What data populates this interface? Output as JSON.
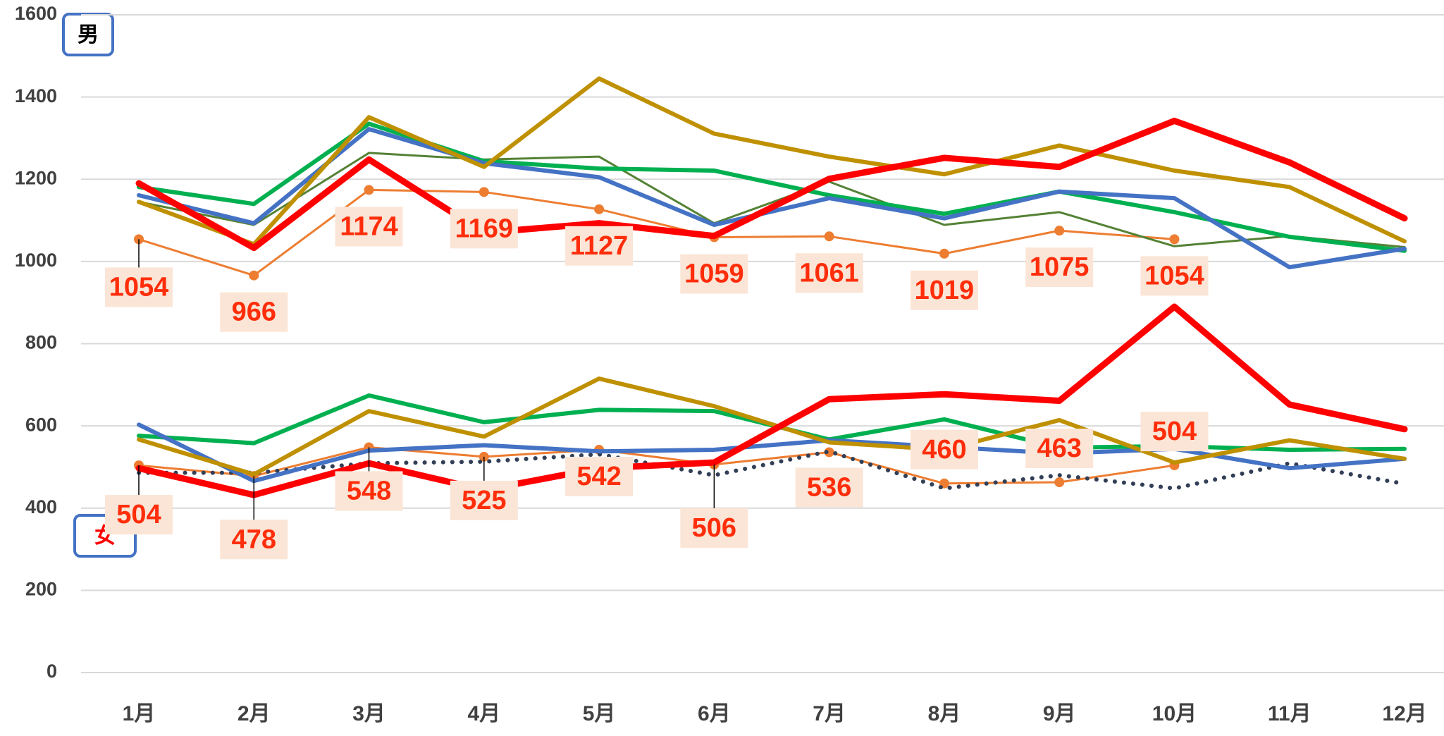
{
  "chart_data": {
    "type": "line",
    "annotations": [
      "男",
      "女"
    ],
    "categories": [
      "1月",
      "2月",
      "3月",
      "4月",
      "5月",
      "6月",
      "7月",
      "8月",
      "9月",
      "10月",
      "11月",
      "12月"
    ],
    "ylim": [
      0,
      1600
    ],
    "yticks": [
      0,
      200,
      400,
      600,
      800,
      1000,
      1200,
      1400,
      1600
    ],
    "grid": true,
    "series": [
      {
        "color": "#ed7d31",
        "markers": true,
        "data_labels": true,
        "values": [
          1054,
          966,
          1174,
          1169,
          1127,
          1059,
          1061,
          1019,
          1075,
          1054,
          null,
          null
        ]
      },
      {
        "color": "#548235",
        "values": [
          1145,
          1089,
          1264,
          1248,
          1255,
          1093,
          1194,
          1089,
          1120,
          1037,
          1062,
          1035
        ]
      },
      {
        "color": "#00b050",
        "values": [
          1181,
          1140,
          1335,
          1244,
          1226,
          1221,
          1161,
          1116,
          1170,
          1120,
          1060,
          1026
        ]
      },
      {
        "color": "#4472c4",
        "values": [
          1161,
          1093,
          1322,
          1239,
          1205,
          1089,
          1154,
          1105,
          1170,
          1154,
          986,
          1031
        ]
      },
      {
        "color": "#bf9000",
        "values": [
          1145,
          1042,
          1351,
          1230,
          1445,
          1311,
          1255,
          1212,
          1282,
          1221,
          1181,
          1049
        ]
      },
      {
        "color": "#ff0000",
        "values": [
          1190,
          1033,
          1248,
          1070,
          1093,
          1062,
          1201,
          1252,
          1230,
          1342,
          1241,
          1105
        ]
      },
      {
        "color": "#ed7d31",
        "markers": true,
        "data_labels": true,
        "values": [
          504,
          478,
          548,
          525,
          542,
          506,
          536,
          460,
          463,
          504,
          null,
          null
        ]
      },
      {
        "color": "#323f56",
        "dotted": true,
        "values": [
          486,
          486,
          509,
          513,
          531,
          480,
          538,
          448,
          480,
          448,
          509,
          459
        ]
      },
      {
        "color": "#00b050",
        "values": [
          576,
          558,
          674,
          609,
          639,
          636,
          567,
          616,
          547,
          551,
          542,
          544
        ]
      },
      {
        "color": "#4472c4",
        "values": [
          603,
          466,
          540,
          553,
          538,
          542,
          565,
          549,
          533,
          544,
          497,
          520
        ]
      },
      {
        "color": "#bf9000",
        "values": [
          567,
          482,
          636,
          574,
          715,
          648,
          560,
          542,
          614,
          511,
          565,
          520
        ]
      },
      {
        "color": "#ff0000",
        "values": [
          497,
          432,
          509,
          444,
          497,
          511,
          665,
          677,
          661,
          890,
          652,
          592
        ]
      }
    ]
  }
}
